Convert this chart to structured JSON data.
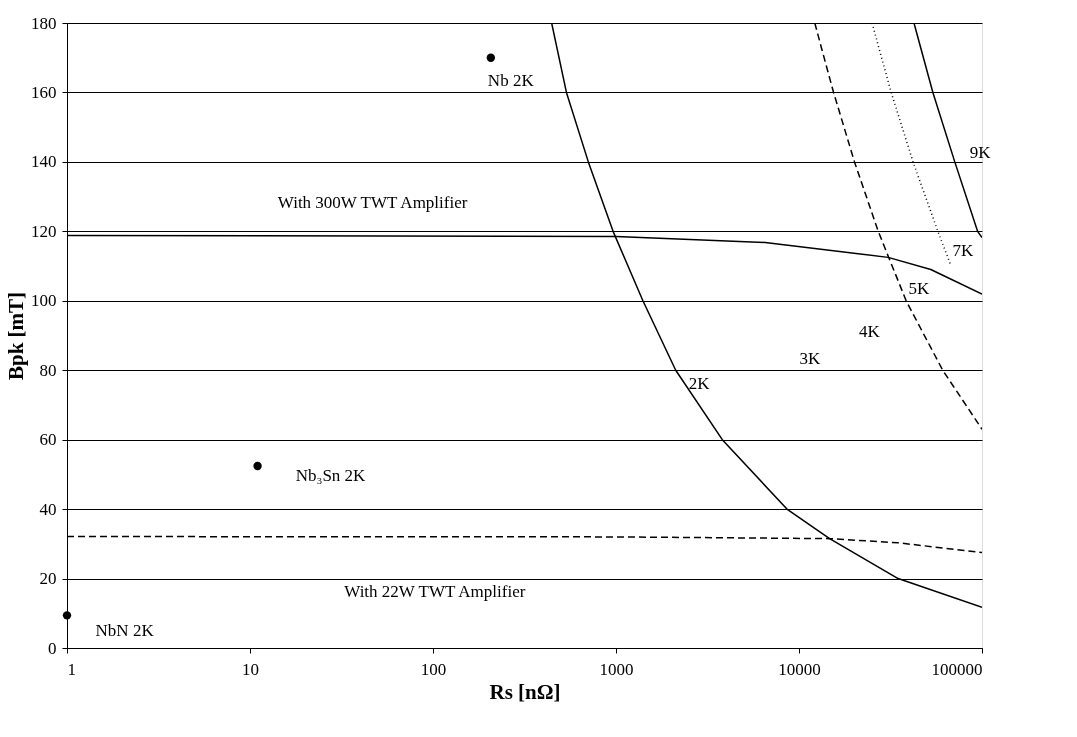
{
  "chart_data": {
    "type": "line",
    "xlabel": "Rs [nΩ]",
    "ylabel": "Bpk [mT]",
    "log": "x",
    "xlim": [
      1,
      100000
    ],
    "xticks": [
      1,
      10,
      100,
      1000,
      10000,
      100000
    ],
    "ylim": [
      0,
      180
    ],
    "yticks": [
      0,
      20,
      40,
      60,
      80,
      100,
      120,
      140,
      160,
      180
    ],
    "grid": "y",
    "series": [
      {
        "color": "#000000",
        "line_style": "solid",
        "x": [
          445,
          536,
          706,
          964,
          1403,
          2120,
          3810,
          8590,
          14700,
          34800,
          100000
        ],
        "values": [
          180,
          160,
          140,
          120,
          100,
          80,
          60,
          40,
          31.5,
          20,
          11.7
        ]
      },
      {
        "color": "#000000",
        "line_style": "dashed",
        "x": [
          12200,
          13300,
          15450,
          20100,
          27100,
          38500,
          61000,
          100000
        ],
        "values": [
          180,
          172.6,
          160,
          140,
          120,
          100,
          80,
          63
        ]
      },
      {
        "color": "#000000",
        "line_style": "dotted",
        "x": [
          25100,
          27400,
          31900,
          42000,
          57400,
          67500
        ],
        "values": [
          180,
          172.6,
          160,
          140,
          120,
          110.2
        ]
      },
      {
        "color": "#000000",
        "line_style": "solid",
        "x": [
          42500,
          46400,
          53900,
          71000,
          94600,
          100000
        ],
        "values": [
          180,
          172.6,
          160,
          140,
          120,
          118.2
        ]
      },
      {
        "color": "#000000",
        "line_style": "solid",
        "x": [
          1,
          1000,
          6530,
          30700,
          52500,
          100000
        ],
        "values": [
          118.8,
          118.5,
          116.8,
          112.5,
          109,
          101.9
        ]
      },
      {
        "color": "#000000",
        "line_style": "dashed",
        "x": [
          1,
          1000,
          14700,
          34800,
          100000
        ],
        "values": [
          32.1,
          32,
          31.5,
          30.3,
          27.5
        ]
      },
      {
        "type": "scatter",
        "color": "#000000",
        "marker": "circle",
        "x": [
          207,
          11,
          1
        ],
        "values": [
          170,
          52.4,
          9.4
        ]
      }
    ],
    "annotations": [
      "Nb 2K",
      "Nb₃Sn 2K",
      "NbN 2K",
      "2K",
      "3K",
      "4K",
      "5K",
      "7K",
      "9K",
      "With 300W TWT Amplifier",
      "With 22W TWT Amplifier"
    ]
  }
}
